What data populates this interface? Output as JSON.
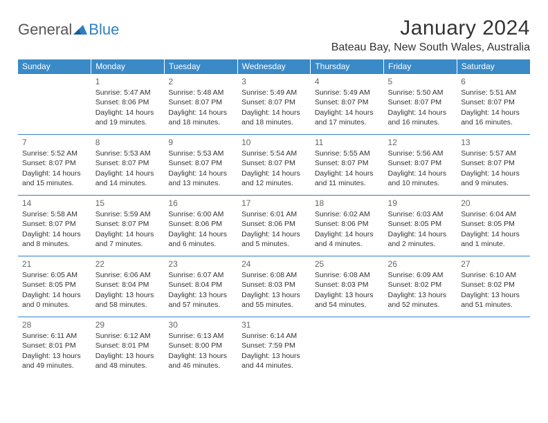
{
  "logo": {
    "general": "General",
    "blue": "Blue"
  },
  "header": {
    "month_title": "January 2024",
    "location": "Bateau Bay, New South Wales, Australia"
  },
  "style": {
    "header_bg": "#3a8ac8",
    "header_fg": "#ffffff",
    "rule_color": "#2f7fc2",
    "body_fontsize": 10.5,
    "daynum_color": "#666666"
  },
  "weekdays": [
    "Sunday",
    "Monday",
    "Tuesday",
    "Wednesday",
    "Thursday",
    "Friday",
    "Saturday"
  ],
  "weeks": [
    [
      null,
      {
        "n": "1",
        "sr": "Sunrise: 5:47 AM",
        "ss": "Sunset: 8:06 PM",
        "d1": "Daylight: 14 hours",
        "d2": "and 19 minutes."
      },
      {
        "n": "2",
        "sr": "Sunrise: 5:48 AM",
        "ss": "Sunset: 8:07 PM",
        "d1": "Daylight: 14 hours",
        "d2": "and 18 minutes."
      },
      {
        "n": "3",
        "sr": "Sunrise: 5:49 AM",
        "ss": "Sunset: 8:07 PM",
        "d1": "Daylight: 14 hours",
        "d2": "and 18 minutes."
      },
      {
        "n": "4",
        "sr": "Sunrise: 5:49 AM",
        "ss": "Sunset: 8:07 PM",
        "d1": "Daylight: 14 hours",
        "d2": "and 17 minutes."
      },
      {
        "n": "5",
        "sr": "Sunrise: 5:50 AM",
        "ss": "Sunset: 8:07 PM",
        "d1": "Daylight: 14 hours",
        "d2": "and 16 minutes."
      },
      {
        "n": "6",
        "sr": "Sunrise: 5:51 AM",
        "ss": "Sunset: 8:07 PM",
        "d1": "Daylight: 14 hours",
        "d2": "and 16 minutes."
      }
    ],
    [
      {
        "n": "7",
        "sr": "Sunrise: 5:52 AM",
        "ss": "Sunset: 8:07 PM",
        "d1": "Daylight: 14 hours",
        "d2": "and 15 minutes."
      },
      {
        "n": "8",
        "sr": "Sunrise: 5:53 AM",
        "ss": "Sunset: 8:07 PM",
        "d1": "Daylight: 14 hours",
        "d2": "and 14 minutes."
      },
      {
        "n": "9",
        "sr": "Sunrise: 5:53 AM",
        "ss": "Sunset: 8:07 PM",
        "d1": "Daylight: 14 hours",
        "d2": "and 13 minutes."
      },
      {
        "n": "10",
        "sr": "Sunrise: 5:54 AM",
        "ss": "Sunset: 8:07 PM",
        "d1": "Daylight: 14 hours",
        "d2": "and 12 minutes."
      },
      {
        "n": "11",
        "sr": "Sunrise: 5:55 AM",
        "ss": "Sunset: 8:07 PM",
        "d1": "Daylight: 14 hours",
        "d2": "and 11 minutes."
      },
      {
        "n": "12",
        "sr": "Sunrise: 5:56 AM",
        "ss": "Sunset: 8:07 PM",
        "d1": "Daylight: 14 hours",
        "d2": "and 10 minutes."
      },
      {
        "n": "13",
        "sr": "Sunrise: 5:57 AM",
        "ss": "Sunset: 8:07 PM",
        "d1": "Daylight: 14 hours",
        "d2": "and 9 minutes."
      }
    ],
    [
      {
        "n": "14",
        "sr": "Sunrise: 5:58 AM",
        "ss": "Sunset: 8:07 PM",
        "d1": "Daylight: 14 hours",
        "d2": "and 8 minutes."
      },
      {
        "n": "15",
        "sr": "Sunrise: 5:59 AM",
        "ss": "Sunset: 8:07 PM",
        "d1": "Daylight: 14 hours",
        "d2": "and 7 minutes."
      },
      {
        "n": "16",
        "sr": "Sunrise: 6:00 AM",
        "ss": "Sunset: 8:06 PM",
        "d1": "Daylight: 14 hours",
        "d2": "and 6 minutes."
      },
      {
        "n": "17",
        "sr": "Sunrise: 6:01 AM",
        "ss": "Sunset: 8:06 PM",
        "d1": "Daylight: 14 hours",
        "d2": "and 5 minutes."
      },
      {
        "n": "18",
        "sr": "Sunrise: 6:02 AM",
        "ss": "Sunset: 8:06 PM",
        "d1": "Daylight: 14 hours",
        "d2": "and 4 minutes."
      },
      {
        "n": "19",
        "sr": "Sunrise: 6:03 AM",
        "ss": "Sunset: 8:05 PM",
        "d1": "Daylight: 14 hours",
        "d2": "and 2 minutes."
      },
      {
        "n": "20",
        "sr": "Sunrise: 6:04 AM",
        "ss": "Sunset: 8:05 PM",
        "d1": "Daylight: 14 hours",
        "d2": "and 1 minute."
      }
    ],
    [
      {
        "n": "21",
        "sr": "Sunrise: 6:05 AM",
        "ss": "Sunset: 8:05 PM",
        "d1": "Daylight: 14 hours",
        "d2": "and 0 minutes."
      },
      {
        "n": "22",
        "sr": "Sunrise: 6:06 AM",
        "ss": "Sunset: 8:04 PM",
        "d1": "Daylight: 13 hours",
        "d2": "and 58 minutes."
      },
      {
        "n": "23",
        "sr": "Sunrise: 6:07 AM",
        "ss": "Sunset: 8:04 PM",
        "d1": "Daylight: 13 hours",
        "d2": "and 57 minutes."
      },
      {
        "n": "24",
        "sr": "Sunrise: 6:08 AM",
        "ss": "Sunset: 8:03 PM",
        "d1": "Daylight: 13 hours",
        "d2": "and 55 minutes."
      },
      {
        "n": "25",
        "sr": "Sunrise: 6:08 AM",
        "ss": "Sunset: 8:03 PM",
        "d1": "Daylight: 13 hours",
        "d2": "and 54 minutes."
      },
      {
        "n": "26",
        "sr": "Sunrise: 6:09 AM",
        "ss": "Sunset: 8:02 PM",
        "d1": "Daylight: 13 hours",
        "d2": "and 52 minutes."
      },
      {
        "n": "27",
        "sr": "Sunrise: 6:10 AM",
        "ss": "Sunset: 8:02 PM",
        "d1": "Daylight: 13 hours",
        "d2": "and 51 minutes."
      }
    ],
    [
      {
        "n": "28",
        "sr": "Sunrise: 6:11 AM",
        "ss": "Sunset: 8:01 PM",
        "d1": "Daylight: 13 hours",
        "d2": "and 49 minutes."
      },
      {
        "n": "29",
        "sr": "Sunrise: 6:12 AM",
        "ss": "Sunset: 8:01 PM",
        "d1": "Daylight: 13 hours",
        "d2": "and 48 minutes."
      },
      {
        "n": "30",
        "sr": "Sunrise: 6:13 AM",
        "ss": "Sunset: 8:00 PM",
        "d1": "Daylight: 13 hours",
        "d2": "and 46 minutes."
      },
      {
        "n": "31",
        "sr": "Sunrise: 6:14 AM",
        "ss": "Sunset: 7:59 PM",
        "d1": "Daylight: 13 hours",
        "d2": "and 44 minutes."
      },
      null,
      null,
      null
    ]
  ]
}
